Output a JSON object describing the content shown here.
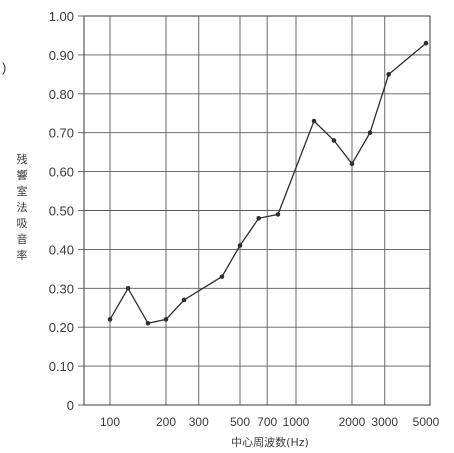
{
  "chart_data": {
    "type": "line",
    "title": "",
    "xlabel": "中心周波数(Hz)",
    "ylabel": "残響室法吸音率",
    "x_scale": "log",
    "xlim": [
      80,
      5000
    ],
    "ylim": [
      0,
      1.0
    ],
    "grid": true,
    "legend": "none",
    "y_ticks": [
      {
        "value": 0,
        "label": "0"
      },
      {
        "value": 0.1,
        "label": "0.10"
      },
      {
        "value": 0.2,
        "label": "0.20"
      },
      {
        "value": 0.3,
        "label": "0.30"
      },
      {
        "value": 0.4,
        "label": "0.40"
      },
      {
        "value": 0.5,
        "label": "0.50"
      },
      {
        "value": 0.6,
        "label": "0.60"
      },
      {
        "value": 0.7,
        "label": "0.70"
      },
      {
        "value": 0.8,
        "label": "0.80"
      },
      {
        "value": 0.9,
        "label": "0.90"
      },
      {
        "value": 1.0,
        "label": "1.00"
      }
    ],
    "x_gridlines": [
      100,
      200,
      300,
      500,
      700,
      1000,
      2000,
      3000
    ],
    "x_ticks": [
      {
        "value": 100,
        "label": "100"
      },
      {
        "value": 200,
        "label": "200"
      },
      {
        "value": 300,
        "label": "300"
      },
      {
        "value": 500,
        "label": "500"
      },
      {
        "value": 700,
        "label": "700"
      },
      {
        "value": 1000,
        "label": "1000"
      },
      {
        "value": 2000,
        "label": "2000"
      },
      {
        "value": 3000,
        "label": "3000"
      },
      {
        "value": 5000,
        "label": "5000"
      }
    ],
    "series": [
      {
        "x": [
          100,
          125,
          160,
          200,
          250,
          400,
          500,
          630,
          800,
          1250,
          1600,
          2000,
          2500,
          3150,
          5000
        ],
        "values": [
          0.22,
          0.3,
          0.21,
          0.22,
          0.27,
          0.33,
          0.41,
          0.48,
          0.49,
          0.73,
          0.68,
          0.62,
          0.7,
          0.85,
          0.93
        ]
      }
    ]
  },
  "stray_mark": ")"
}
